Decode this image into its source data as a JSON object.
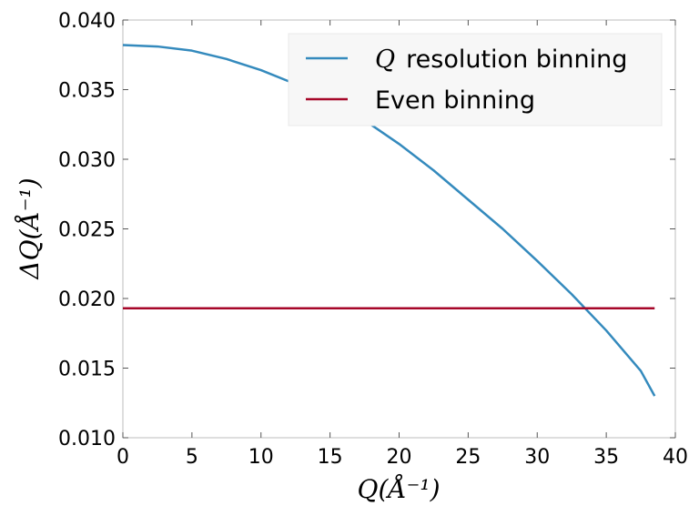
{
  "chart_data": {
    "type": "line",
    "xlabel": "Q(Å⁻¹)",
    "ylabel": "ΔQ(Å⁻¹)",
    "xlim": [
      0,
      40
    ],
    "ylim": [
      0.01,
      0.04
    ],
    "xticks": [
      "0",
      "5",
      "10",
      "15",
      "20",
      "25",
      "30",
      "35",
      "40"
    ],
    "yticks": [
      "0.010",
      "0.015",
      "0.020",
      "0.025",
      "0.030",
      "0.035",
      "0.040"
    ],
    "legend_position": "top-right",
    "series": [
      {
        "name_math": "Q",
        "name_text": "resolution binning",
        "color": "#348abd",
        "x": [
          0,
          2.5,
          5,
          7.5,
          10,
          12.5,
          15,
          17.5,
          20,
          22.5,
          25,
          27.5,
          30,
          32.5,
          35,
          37.5,
          38.5
        ],
        "y": [
          0.0382,
          0.0381,
          0.0378,
          0.0372,
          0.0364,
          0.0354,
          0.0342,
          0.0328,
          0.0311,
          0.0292,
          0.0271,
          0.025,
          0.0227,
          0.0203,
          0.0177,
          0.0148,
          0.013
        ]
      },
      {
        "name": "Even binning",
        "color": "#a60628",
        "x": [
          0,
          38.5
        ],
        "y": [
          0.0193,
          0.0193
        ]
      }
    ]
  }
}
